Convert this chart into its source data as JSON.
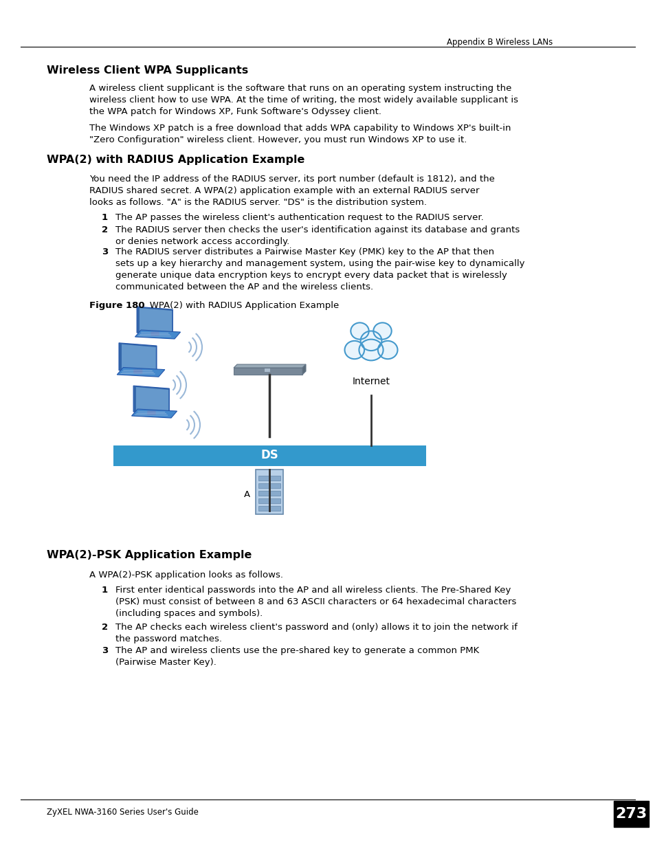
{
  "page_header_right": "Appendix B Wireless LANs",
  "page_footer_left": "ZyXEL NWA-3160 Series User's Guide",
  "page_number": "273",
  "section1_title": "Wireless Client WPA Supplicants",
  "section1_para1": "A wireless client supplicant is the software that runs on an operating system instructing the\nwireless client how to use WPA. At the time of writing, the most widely available supplicant is\nthe WPA patch for Windows XP, Funk Software's Odyssey client.",
  "section1_para2": "The Windows XP patch is a free download that adds WPA capability to Windows XP's built-in\n\"Zero Configuration\" wireless client. However, you must run Windows XP to use it.",
  "section2_title": "WPA(2) with RADIUS Application Example",
  "section2_para1": "You need the IP address of the RADIUS server, its port number (default is 1812), and the\nRADIUS shared secret. A WPA(2) application example with an external RADIUS server\nlooks as follows. \"A\" is the RADIUS server. \"DS\" is the distribution system.",
  "section2_item1": "The AP passes the wireless client's authentication request to the RADIUS server.",
  "section2_item2": "The RADIUS server then checks the user's identification against its database and grants\nor denies network access accordingly.",
  "section2_item3": "The RADIUS server distributes a Pairwise Master Key (PMK) key to the AP that then\nsets up a key hierarchy and management system, using the pair-wise key to dynamically\ngenerate unique data encryption keys to encrypt every data packet that is wirelessly\ncommunicated between the AP and the wireless clients.",
  "figure_label_bold": "Figure 180",
  "figure_label_normal": "   WPA(2) with RADIUS Application Example",
  "section3_title": "WPA(2)-PSK Application Example",
  "section3_para1": "A WPA(2)-PSK application looks as follows.",
  "section3_item1": "First enter identical passwords into the AP and all wireless clients. The Pre-Shared Key\n(PSK) must consist of between 8 and 63 ASCII characters or 64 hexadecimal characters\n(including spaces and symbols).",
  "section3_item2": "The AP checks each wireless client's password and (only) allows it to join the network if\nthe password matches.",
  "section3_item3": "The AP and wireless clients use the pre-shared key to generate a common PMK\n(Pairwise Master Key).",
  "bg_color": "#ffffff",
  "text_color": "#000000",
  "ds_bar_color": "#3399cc",
  "ds_text_color": "#ffffff",
  "laptop_screen_color": "#3366aa",
  "laptop_body_color": "#4488cc",
  "ap_color": "#8899aa",
  "cloud_fill": "#e8f4fc",
  "cloud_stroke": "#4499cc",
  "line_color": "#333333"
}
